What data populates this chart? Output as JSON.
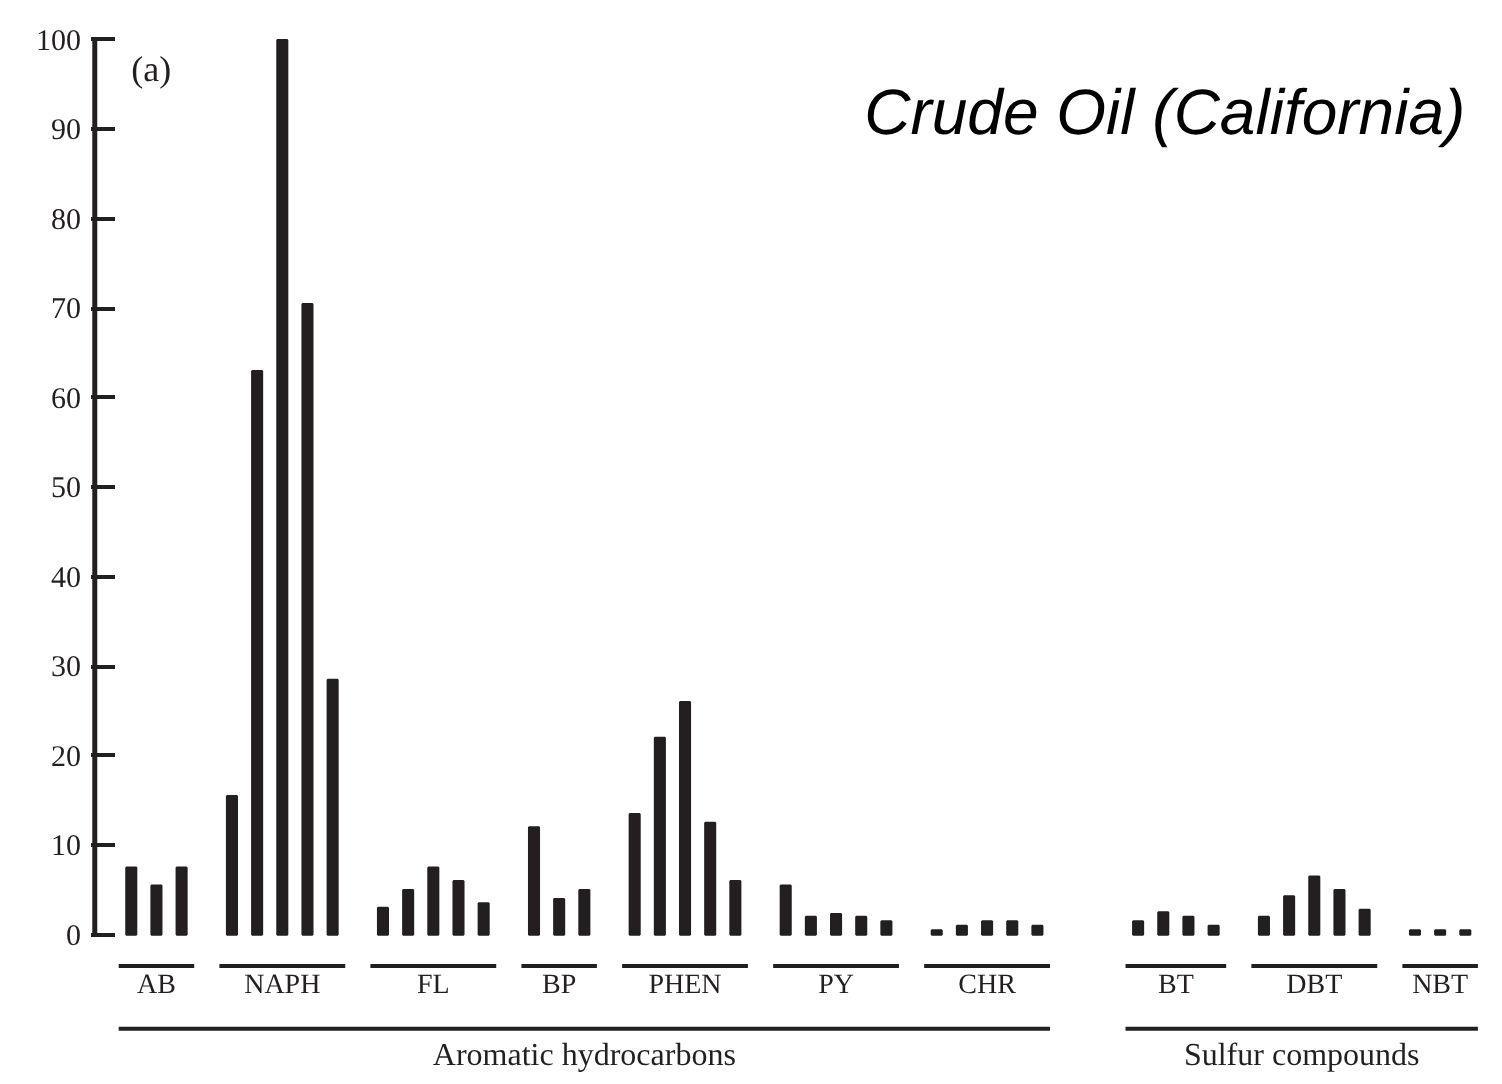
{
  "chart_data": {
    "type": "bar",
    "title": "Crude Oil (California)",
    "categories": [
      null,
      "AB",
      null,
      null,
      null,
      null,
      "NAPH",
      null,
      null,
      null,
      null,
      null,
      "FL",
      null,
      null,
      null,
      null,
      "BP",
      null,
      null,
      null,
      null,
      "PHEN",
      null,
      null,
      null,
      null,
      null,
      "PY",
      null,
      null,
      null,
      null,
      null,
      "CHR",
      null,
      null,
      null,
      null,
      null,
      null,
      "BT",
      null,
      null,
      null,
      null,
      null,
      "DBT",
      null,
      null,
      null,
      null,
      "NBT",
      null
    ],
    "values": [
      7.5,
      5.5,
      7.5,
      null,
      15.5,
      63,
      100,
      70.5,
      28.5,
      null,
      3,
      5,
      7.5,
      6,
      3.5,
      null,
      12,
      4,
      5,
      null,
      13.5,
      22,
      26,
      12.5,
      6,
      null,
      5.5,
      2,
      2.3,
      2,
      1.5,
      null,
      0.5,
      1,
      1.5,
      1.5,
      1,
      null,
      null,
      null,
      1.5,
      2.5,
      2,
      1,
      null,
      2,
      4.3,
      6.5,
      5,
      2.8,
      null,
      0.5,
      0.5,
      0.5
    ],
    "color": "#231f20",
    "ylim": [
      0,
      100
    ],
    "yticks": [
      0,
      10,
      20,
      30,
      40,
      50,
      60,
      70,
      80,
      90,
      100
    ],
    "grid": false,
    "annotations": [
      "(a)",
      "Aromatic hydrocarbons",
      "Sulfur compounds"
    ]
  }
}
